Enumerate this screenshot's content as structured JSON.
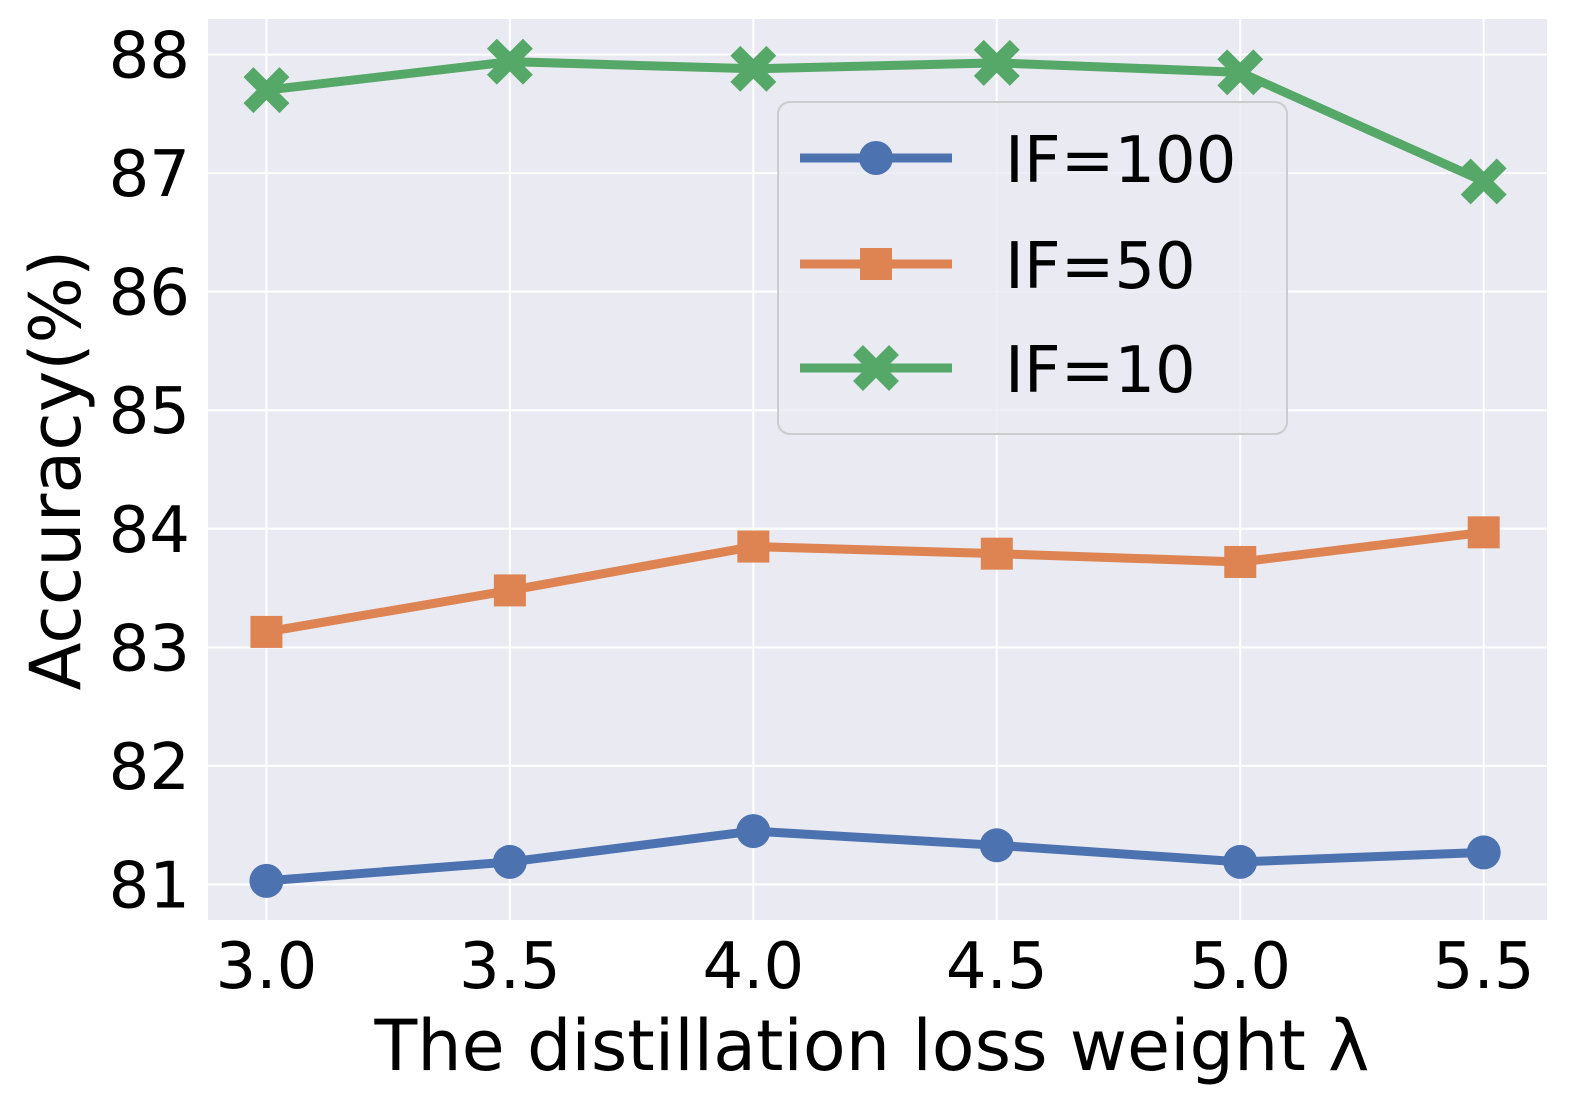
{
  "chart_data": {
    "type": "line",
    "title": "",
    "xlabel": "The distillation loss weight λ",
    "ylabel": "Accuracy(%)",
    "x": [
      3.0,
      3.5,
      4.0,
      4.5,
      5.0,
      5.5
    ],
    "x_tick_labels": [
      "3.0",
      "3.5",
      "4.0",
      "4.5",
      "5.0",
      "5.5"
    ],
    "y_ticks": [
      81,
      82,
      83,
      84,
      85,
      86,
      87,
      88
    ],
    "y_tick_labels": [
      "81",
      "82",
      "83",
      "84",
      "85",
      "86",
      "87",
      "88"
    ],
    "xlim": [
      2.88,
      5.63
    ],
    "ylim": [
      80.7,
      88.3
    ],
    "grid": true,
    "legend_position": "upper-center",
    "colors": {
      "background": "#eaeaf2",
      "grid": "#ffffff",
      "legend_frame": "#cccccc"
    },
    "series": [
      {
        "name": "IF=100",
        "color": "#4c72b0",
        "marker": "circle",
        "values": [
          81.03,
          81.19,
          81.45,
          81.33,
          81.19,
          81.27
        ]
      },
      {
        "name": "IF=50",
        "color": "#dd8452",
        "marker": "square",
        "values": [
          83.13,
          83.48,
          83.85,
          83.79,
          83.72,
          83.97
        ]
      },
      {
        "name": "IF=10",
        "color": "#55a868",
        "marker": "x-cross",
        "values": [
          87.7,
          87.94,
          87.88,
          87.93,
          87.85,
          86.93
        ]
      }
    ]
  }
}
